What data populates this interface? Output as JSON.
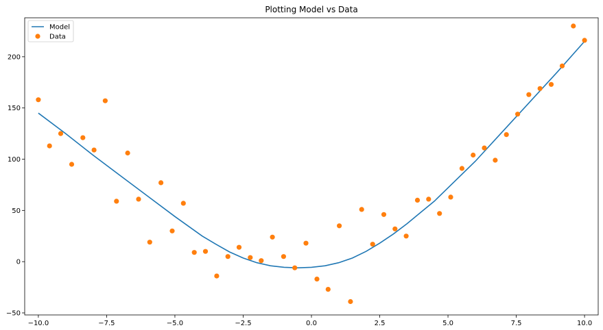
{
  "chart_data": {
    "type": "scatter",
    "title": "Plotting Model vs Data",
    "xlabel": "",
    "ylabel": "",
    "xlim": [
      -10.5,
      10.5
    ],
    "ylim": [
      -52,
      238
    ],
    "x_ticks": [
      -10.0,
      -7.5,
      -5.0,
      -2.5,
      0.0,
      2.5,
      5.0,
      7.5,
      10.0
    ],
    "x_tick_labels": [
      "−10.0",
      "−7.5",
      "−5.0",
      "−2.5",
      "0.0",
      "2.5",
      "5.0",
      "7.5",
      "10.0"
    ],
    "y_ticks": [
      -50,
      0,
      50,
      100,
      150,
      200
    ],
    "y_tick_labels": [
      "−50",
      "0",
      "50",
      "100",
      "150",
      "200"
    ],
    "grid": false,
    "legend_position": "top-left",
    "series": [
      {
        "name": "Model",
        "kind": "line",
        "color": "#1f77b4",
        "x": [
          -10.0,
          -9.0,
          -8.0,
          -7.0,
          -6.0,
          -5.0,
          -4.0,
          -3.5,
          -3.0,
          -2.5,
          -2.0,
          -1.5,
          -1.0,
          -0.5,
          0.0,
          0.5,
          1.0,
          1.5,
          2.0,
          2.5,
          3.0,
          3.5,
          4.0,
          4.5,
          5.0,
          6.0,
          7.0,
          8.0,
          9.0,
          10.0
        ],
        "y": [
          145,
          125,
          104,
          84,
          64,
          44,
          25,
          17,
          9.5,
          3.5,
          -1,
          -4,
          -5.5,
          -6,
          -5.5,
          -4,
          -1,
          3.5,
          10,
          18,
          27,
          37,
          48,
          59,
          72,
          98,
          127,
          156,
          185,
          215
        ]
      },
      {
        "name": "Data",
        "kind": "scatter",
        "color": "#ff7f0e",
        "x": [
          -10.0,
          -9.59,
          -9.18,
          -8.78,
          -8.37,
          -7.96,
          -7.55,
          -7.14,
          -6.73,
          -6.33,
          -5.92,
          -5.51,
          -5.1,
          -4.69,
          -4.29,
          -3.88,
          -3.47,
          -3.06,
          -2.65,
          -2.24,
          -1.84,
          -1.43,
          -1.02,
          -0.61,
          -0.2,
          0.2,
          0.61,
          1.02,
          1.43,
          1.84,
          2.24,
          2.65,
          3.06,
          3.47,
          3.88,
          4.29,
          4.69,
          5.1,
          5.51,
          5.92,
          6.33,
          6.73,
          7.14,
          7.55,
          7.96,
          8.37,
          8.78,
          9.18,
          9.59,
          10.0
        ],
        "y": [
          158,
          113,
          125,
          95,
          121,
          109,
          157,
          59,
          106,
          61,
          19,
          77,
          30,
          57,
          9,
          10,
          -14,
          5,
          14,
          4,
          1,
          24,
          5,
          -6,
          18,
          -17,
          -27,
          35,
          -39,
          51,
          17,
          46,
          32,
          25,
          60,
          61,
          47,
          63,
          91,
          104,
          111,
          99,
          124,
          144,
          163,
          169,
          173,
          191,
          230,
          216
        ]
      }
    ]
  }
}
